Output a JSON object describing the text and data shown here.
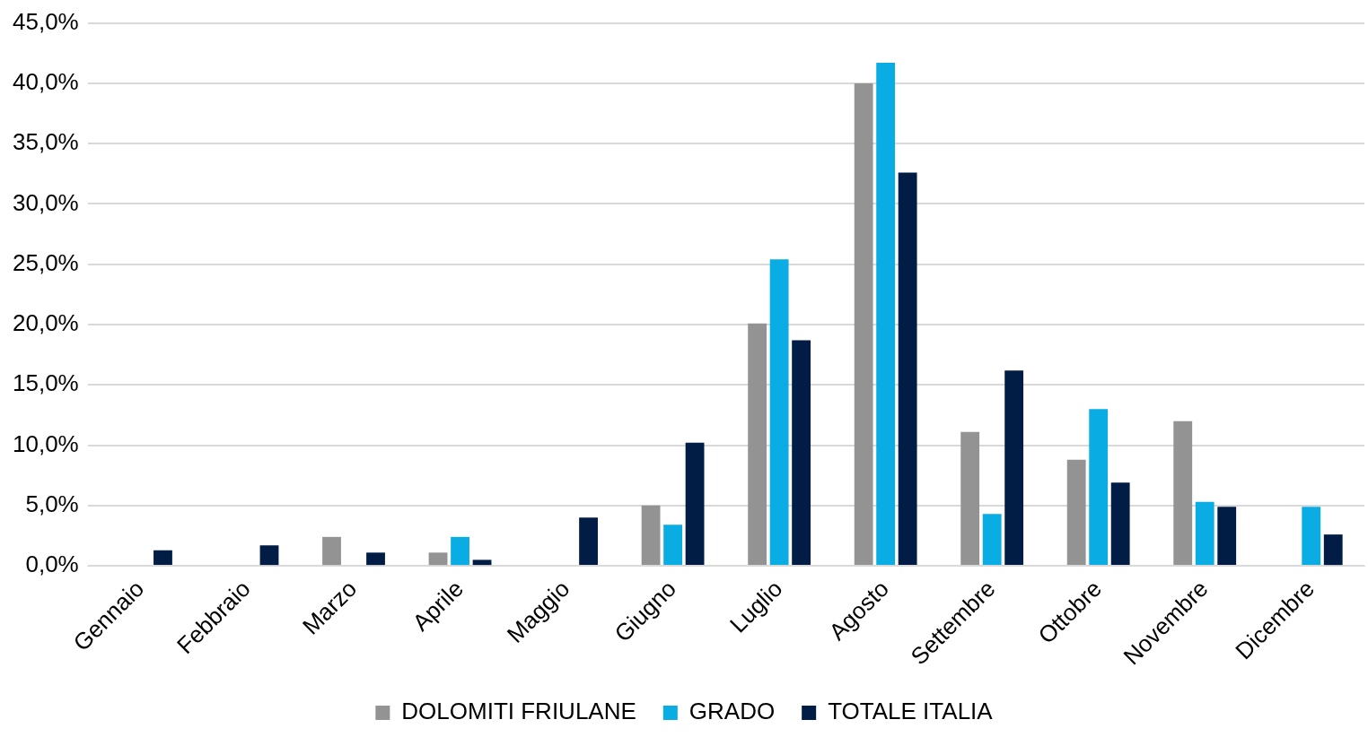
{
  "chart_data": {
    "type": "bar",
    "categories": [
      "Gennaio",
      "Febbraio",
      "Marzo",
      "Aprile",
      "Maggio",
      "Giugno",
      "Luglio",
      "Agosto",
      "Settembre",
      "Ottobre",
      "Novembre",
      "Dicembre"
    ],
    "series": [
      {
        "name": "DOLOMITI FRIULANE",
        "color": "#939393",
        "values": [
          null,
          null,
          2.4,
          1.1,
          null,
          5.0,
          20.1,
          40.0,
          11.1,
          8.8,
          12.0,
          null
        ]
      },
      {
        "name": "GRADO",
        "color": "#09ade4",
        "values": [
          null,
          null,
          null,
          2.4,
          null,
          3.4,
          25.4,
          41.7,
          4.3,
          13.0,
          5.3,
          4.9
        ]
      },
      {
        "name": "TOTALE ITALIA",
        "color": "#011c45",
        "values": [
          1.3,
          1.7,
          1.1,
          0.5,
          4.0,
          10.2,
          18.7,
          32.6,
          16.2,
          6.9,
          4.9,
          2.6
        ]
      }
    ],
    "ylim": [
      0,
      45
    ],
    "yticks": [
      {
        "value": 0,
        "label": "0,0%"
      },
      {
        "value": 5,
        "label": "5,0%"
      },
      {
        "value": 10,
        "label": "10,0%"
      },
      {
        "value": 15,
        "label": "15,0%"
      },
      {
        "value": 20,
        "label": "20,0%"
      },
      {
        "value": 25,
        "label": "25,0%"
      },
      {
        "value": 30,
        "label": "30,0%"
      },
      {
        "value": 35,
        "label": "35,0%"
      },
      {
        "value": 40,
        "label": "40,0%"
      },
      {
        "value": 45,
        "label": "45,0%"
      }
    ],
    "grid": "y",
    "legend": "bottom"
  }
}
